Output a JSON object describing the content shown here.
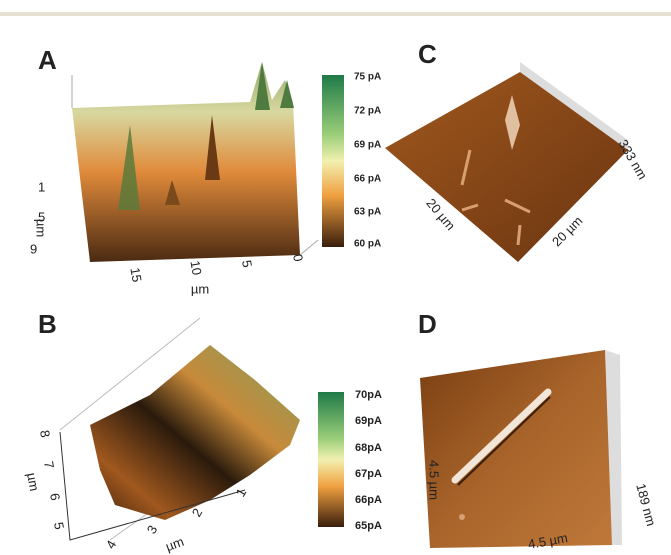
{
  "panels": [
    {
      "label": "A",
      "colorbar": [
        "75 pA",
        "72 pA",
        "69 pA",
        "66 pA",
        "63 pA",
        "60 pA"
      ],
      "y_ticks": [
        "1",
        "5",
        "9"
      ],
      "y_unit": "µm",
      "x_ticks": [
        "15",
        "10",
        "5",
        "0"
      ],
      "x_unit": "µm"
    },
    {
      "label": "C",
      "z_label": "333 nm",
      "x_label": "20 µm",
      "y_label": "20 µm"
    },
    {
      "label": "B",
      "colorbar": [
        "70pA",
        "69pA",
        "68pA",
        "67pA",
        "66pA",
        "65pA"
      ],
      "y_ticks": [
        "8",
        "7",
        "6",
        "5"
      ],
      "y_unit": "µm",
      "x_ticks": [
        "4",
        "3",
        "2",
        "1"
      ],
      "x_unit": "µm"
    },
    {
      "label": "D",
      "y_label": "4.5 µm",
      "x_label": "4.5 µm",
      "z_label": "189 nm"
    }
  ]
}
